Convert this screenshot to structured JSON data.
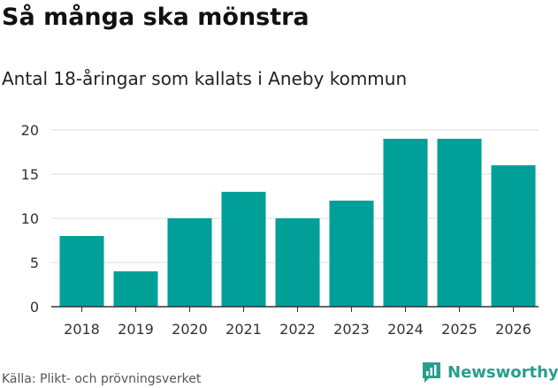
{
  "title": "Så många ska mönstra",
  "subtitle": "Antal 18-åringar som kallats i Aneby kommun",
  "source": "Källa: Plikt- och prövningsverket",
  "brand": {
    "name": "Newsworthy",
    "logo_icon": "newsworthy-chart-icon",
    "color": "#2a9d8f"
  },
  "colors": {
    "bar": "#00a099",
    "grid": "#dddddd",
    "axis": "#333333",
    "tick_text": "#333333"
  },
  "chart_data": {
    "type": "bar",
    "categories": [
      "2018",
      "2019",
      "2020",
      "2021",
      "2022",
      "2023",
      "2024",
      "2025",
      "2026"
    ],
    "values": [
      8,
      4,
      10,
      13,
      10,
      12,
      19,
      19,
      16
    ],
    "yticks": [
      "0",
      "5",
      "10",
      "15",
      "20"
    ],
    "ylim": [
      0,
      20
    ],
    "grid": true,
    "legend": "none"
  }
}
